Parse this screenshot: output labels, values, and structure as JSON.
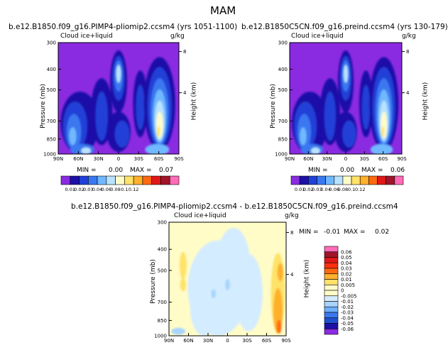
{
  "season": "MAM",
  "variable_label": "Cloud ice+liquid",
  "units": "g/kg",
  "panels": {
    "left": {
      "title": "b.e12.B1850.f09_g16.PIMP4-pliomip2.ccsm4 (yrs 1051-1100)",
      "min_label": "MIN =",
      "min_value": "0.00",
      "max_label": "MAX =",
      "max_value": "0.07"
    },
    "right": {
      "title": "b.e12.B1850C5CN.f09_g16.preind.ccsm4 (yrs 130-179)",
      "min_label": "MIN =",
      "min_value": "0.00",
      "max_label": "MAX =",
      "max_value": "0.06"
    },
    "diff": {
      "title": "b.e12.B1850.f09_g16.PIMP4-pliomip2.ccsm4 - b.e12.B1850C5CN.f09_g16.preind.ccsm4",
      "min_label": "MIN =",
      "min_value": "-0.01",
      "max_label": "MAX =",
      "max_value": "0.02"
    }
  },
  "axes": {
    "ylabel": "Pressure (mb)",
    "y2label": "Height (km)",
    "pressure_ticks": [
      "300",
      "400",
      "500",
      "700",
      "850",
      "1000"
    ],
    "height_ticks": [
      "8",
      "4"
    ],
    "lat_ticks": [
      "90N",
      "60N",
      "30N",
      "0",
      "30S",
      "60S",
      "90S"
    ]
  },
  "colorbar_top": {
    "labels": [
      "0.01",
      "0.02",
      "0.03",
      "0.04",
      "0.06",
      "0.08",
      "0.1",
      "0.12"
    ],
    "colors": [
      "#8a2be2",
      "#1c10a8",
      "#2040d8",
      "#3a78f0",
      "#6fb8ff",
      "#b8e2ff",
      "#fffcc8",
      "#ffe26a",
      "#ffb02c",
      "#ff6a10",
      "#e01818",
      "#a0152a",
      "#ff6cb8"
    ]
  },
  "colorbar_diff": {
    "labels": [
      "0.06",
      "0.05",
      "0.04",
      "0.03",
      "0.02",
      "0.01",
      "0.005",
      "0",
      "-0.005",
      "-0.01",
      "-0.02",
      "-0.03",
      "-0.04",
      "-0.05",
      "-0.06"
    ],
    "colors": [
      "#ff6cb8",
      "#a0152a",
      "#e01818",
      "#ff3010",
      "#ff6a10",
      "#ffb02c",
      "#ffe26a",
      "#fffcc8",
      "#fffcc8",
      "#d4ecff",
      "#a8d4ff",
      "#6fb0ff",
      "#3a78f0",
      "#2050d0",
      "#1c10a8",
      "#8a2be2"
    ]
  },
  "chart_data": [
    {
      "type": "heatmap",
      "title": "b.e12.B1850.f09_g16.PIMP4-pliomip2.ccsm4 (yrs 1051-1100)",
      "xlabel": "",
      "ylabel": "Pressure (mb)",
      "x_ticks": [
        "90N",
        "60N",
        "30N",
        "0",
        "30S",
        "60S",
        "90S"
      ],
      "y_ticks": [
        300,
        400,
        500,
        700,
        850,
        1000
      ],
      "units": "g/kg",
      "min": 0.0,
      "max": 0.07
    },
    {
      "type": "heatmap",
      "title": "b.e12.B1850C5CN.f09_g16.preind.ccsm4 (yrs 130-179)",
      "xlabel": "",
      "ylabel": "Pressure (mb)",
      "x_ticks": [
        "90N",
        "60N",
        "30N",
        "0",
        "30S",
        "60S",
        "90S"
      ],
      "y_ticks": [
        300,
        400,
        500,
        700,
        850,
        1000
      ],
      "units": "g/kg",
      "min": 0.0,
      "max": 0.06
    },
    {
      "type": "heatmap",
      "title": "b.e12.B1850.f09_g16.PIMP4-pliomip2.ccsm4 - b.e12.B1850C5CN.f09_g16.preind.ccsm4",
      "xlabel": "",
      "ylabel": "Pressure (mb)",
      "x_ticks": [
        "90N",
        "60N",
        "30N",
        "0",
        "30S",
        "60S",
        "90S"
      ],
      "y_ticks": [
        300,
        400,
        500,
        700,
        850,
        1000
      ],
      "units": "g/kg",
      "min": -0.01,
      "max": 0.02
    }
  ]
}
